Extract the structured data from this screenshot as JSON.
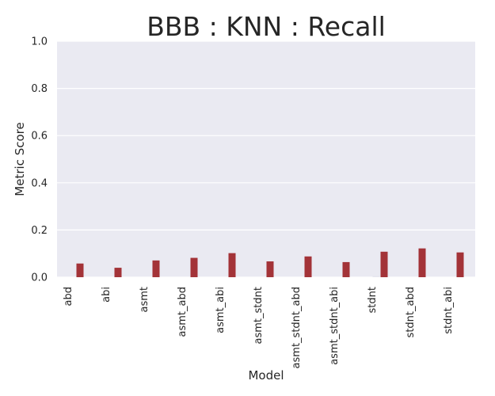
{
  "chart_data": {
    "type": "bar",
    "title": "BBB : KNN : Recall",
    "xlabel": "Model",
    "ylabel": "Metric Score",
    "ylim": [
      0,
      1.0
    ],
    "yticks": [
      "0.0",
      "0.2",
      "0.4",
      "0.6",
      "0.8",
      "1.0"
    ],
    "grid": true,
    "categories": [
      "abd",
      "abi",
      "asmt",
      "asmt_abd",
      "asmt_abi",
      "asmt_stdnt",
      "asmt_stdnt_abd",
      "asmt_stdnt_abi",
      "stdnt",
      "stdnt_abd",
      "stdnt_abi"
    ],
    "series": [
      {
        "color": "#e7e7ef",
        "values": [
          0.0,
          0.0,
          0.0,
          0.0,
          0.0,
          0.0,
          0.0,
          0.0,
          0.005,
          0.0,
          0.0
        ]
      },
      {
        "color": "#a33338",
        "values": [
          0.058,
          0.04,
          0.071,
          0.082,
          0.102,
          0.067,
          0.088,
          0.064,
          0.108,
          0.122,
          0.105
        ]
      }
    ],
    "colors": {
      "plot_background": "#eaeaf2",
      "grid": "#ffffff"
    }
  }
}
